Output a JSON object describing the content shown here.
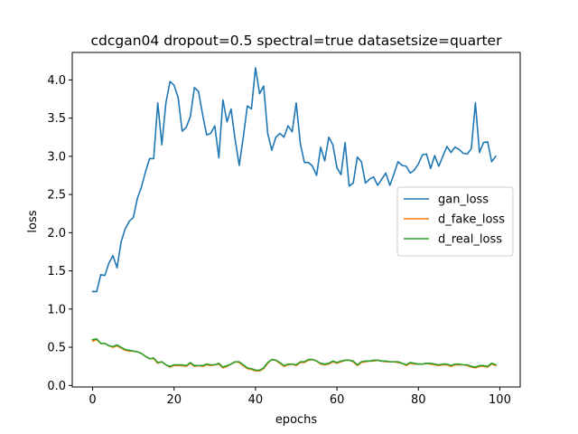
{
  "chart_data": {
    "type": "line",
    "title": "cdcgan04 dropout=0.5 spectral=true datasetsize=quarter",
    "xlabel": "epochs",
    "ylabel": "loss",
    "xlim": [
      -5,
      105
    ],
    "ylim": [
      -0.02,
      4.36
    ],
    "xticks": [
      0,
      20,
      40,
      60,
      80,
      100
    ],
    "yticks": [
      0.0,
      0.5,
      1.0,
      1.5,
      2.0,
      2.5,
      3.0,
      3.5,
      4.0
    ],
    "xtick_labels": [
      "0",
      "20",
      "40",
      "60",
      "80",
      "100"
    ],
    "ytick_labels": [
      "0.0",
      "0.5",
      "1.0",
      "1.5",
      "2.0",
      "2.5",
      "3.0",
      "3.5",
      "4.0"
    ],
    "grid": false,
    "legend_position": "center-right",
    "x": [
      0,
      1,
      2,
      3,
      4,
      5,
      6,
      7,
      8,
      9,
      10,
      11,
      12,
      13,
      14,
      15,
      16,
      17,
      18,
      19,
      20,
      21,
      22,
      23,
      24,
      25,
      26,
      27,
      28,
      29,
      30,
      31,
      32,
      33,
      34,
      35,
      36,
      37,
      38,
      39,
      40,
      41,
      42,
      43,
      44,
      45,
      46,
      47,
      48,
      49,
      50,
      51,
      52,
      53,
      54,
      55,
      56,
      57,
      58,
      59,
      60,
      61,
      62,
      63,
      64,
      65,
      66,
      67,
      68,
      69,
      70,
      71,
      72,
      73,
      74,
      75,
      76,
      77,
      78,
      79,
      80,
      81,
      82,
      83,
      84,
      85,
      86,
      87,
      88,
      89,
      90,
      91,
      92,
      93,
      94,
      95,
      96,
      97,
      98,
      99
    ],
    "series": [
      {
        "name": "gan_loss",
        "color": "#1f77b4",
        "values": [
          1.23,
          1.23,
          1.45,
          1.44,
          1.6,
          1.7,
          1.54,
          1.88,
          2.05,
          2.15,
          2.2,
          2.45,
          2.6,
          2.8,
          2.97,
          2.97,
          3.7,
          3.15,
          3.7,
          3.98,
          3.93,
          3.77,
          3.33,
          3.38,
          3.52,
          3.9,
          3.85,
          3.55,
          3.28,
          3.3,
          3.4,
          2.98,
          3.74,
          3.45,
          3.62,
          3.22,
          2.88,
          3.25,
          3.66,
          3.62,
          4.16,
          3.82,
          3.92,
          3.3,
          3.08,
          3.25,
          3.3,
          3.25,
          3.4,
          3.32,
          3.7,
          3.17,
          2.92,
          2.92,
          2.87,
          2.75,
          3.12,
          2.94,
          3.25,
          3.15,
          2.85,
          2.76,
          3.18,
          2.61,
          2.65,
          2.99,
          2.93,
          2.65,
          2.7,
          2.73,
          2.62,
          2.7,
          2.78,
          2.62,
          2.77,
          2.93,
          2.88,
          2.87,
          2.78,
          2.82,
          2.9,
          3.02,
          3.03,
          2.84,
          3.01,
          2.87,
          3.0,
          3.13,
          3.05,
          3.12,
          3.09,
          3.04,
          3.03,
          3.1,
          3.7,
          3.05,
          3.18,
          3.19,
          2.93,
          3.0
        ]
      },
      {
        "name": "d_fake_loss",
        "color": "#ff7f0e",
        "values": [
          0.58,
          0.6,
          0.55,
          0.55,
          0.52,
          0.5,
          0.52,
          0.49,
          0.46,
          0.45,
          0.45,
          0.44,
          0.42,
          0.38,
          0.35,
          0.35,
          0.29,
          0.31,
          0.27,
          0.24,
          0.26,
          0.26,
          0.26,
          0.25,
          0.29,
          0.25,
          0.26,
          0.25,
          0.27,
          0.26,
          0.27,
          0.28,
          0.23,
          0.25,
          0.28,
          0.31,
          0.3,
          0.26,
          0.22,
          0.21,
          0.19,
          0.19,
          0.22,
          0.29,
          0.34,
          0.33,
          0.29,
          0.25,
          0.27,
          0.28,
          0.26,
          0.3,
          0.3,
          0.33,
          0.34,
          0.32,
          0.28,
          0.27,
          0.28,
          0.31,
          0.29,
          0.31,
          0.33,
          0.33,
          0.31,
          0.26,
          0.3,
          0.31,
          0.32,
          0.32,
          0.33,
          0.32,
          0.31,
          0.31,
          0.31,
          0.3,
          0.29,
          0.26,
          0.29,
          0.28,
          0.28,
          0.28,
          0.29,
          0.28,
          0.27,
          0.26,
          0.27,
          0.27,
          0.25,
          0.27,
          0.27,
          0.27,
          0.26,
          0.24,
          0.23,
          0.25,
          0.25,
          0.24,
          0.28,
          0.26
        ]
      },
      {
        "name": "d_real_loss",
        "color": "#2ca02c",
        "values": [
          0.6,
          0.61,
          0.55,
          0.55,
          0.52,
          0.51,
          0.53,
          0.5,
          0.47,
          0.46,
          0.45,
          0.44,
          0.42,
          0.38,
          0.35,
          0.36,
          0.3,
          0.31,
          0.27,
          0.25,
          0.27,
          0.27,
          0.27,
          0.26,
          0.3,
          0.26,
          0.26,
          0.26,
          0.28,
          0.27,
          0.27,
          0.29,
          0.24,
          0.26,
          0.28,
          0.31,
          0.31,
          0.27,
          0.23,
          0.22,
          0.2,
          0.2,
          0.23,
          0.3,
          0.34,
          0.33,
          0.3,
          0.26,
          0.28,
          0.28,
          0.27,
          0.31,
          0.31,
          0.34,
          0.34,
          0.32,
          0.29,
          0.28,
          0.29,
          0.32,
          0.3,
          0.32,
          0.33,
          0.33,
          0.32,
          0.27,
          0.31,
          0.32,
          0.32,
          0.33,
          0.33,
          0.32,
          0.32,
          0.31,
          0.31,
          0.31,
          0.29,
          0.27,
          0.3,
          0.29,
          0.28,
          0.28,
          0.29,
          0.29,
          0.28,
          0.27,
          0.28,
          0.28,
          0.26,
          0.28,
          0.28,
          0.27,
          0.27,
          0.25,
          0.24,
          0.26,
          0.26,
          0.25,
          0.29,
          0.27
        ]
      }
    ]
  }
}
